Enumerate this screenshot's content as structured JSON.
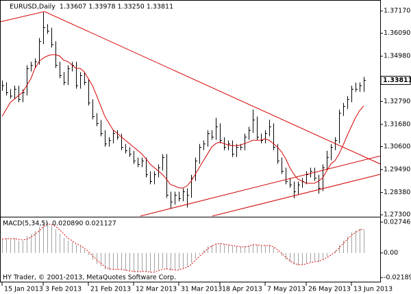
{
  "chart_data": {
    "type": "ohlc",
    "title": "EURUSD,Daily",
    "title_values": "1.33607 1.33978 1.33250 1.33811",
    "color": "#000000",
    "xlim": [
      -0.5,
      92
    ],
    "xticks": [
      {
        "value": 0,
        "label": "15 Jan 2013"
      },
      {
        "value": 10,
        "label": "3 Feb 2013"
      },
      {
        "value": 21,
        "label": "21 Feb 2013"
      },
      {
        "value": 32,
        "label": "12 Mar 2013"
      },
      {
        "value": 43,
        "label": "31 Mar 2013"
      },
      {
        "value": 53,
        "label": "18 Apr 2013"
      },
      {
        "value": 64,
        "label": "7 May 2013"
      },
      {
        "value": 74,
        "label": "26 May 2013"
      },
      {
        "value": 85,
        "label": "13 Jun 2013"
      }
    ],
    "ylim": [
      1.2724,
      1.377
    ],
    "yticks": [
      {
        "value": 1.3717,
        "label": "1.37170"
      },
      {
        "value": 1.3609,
        "label": "1.36090"
      },
      {
        "value": 1.3498,
        "label": "1.34980"
      },
      {
        "value": 1.3279,
        "label": "1.32790"
      },
      {
        "value": 1.3168,
        "label": "1.31680"
      },
      {
        "value": 1.306,
        "label": "1.30600"
      },
      {
        "value": 1.2949,
        "label": "1.29490"
      },
      {
        "value": 1.2838,
        "label": "1.28380"
      },
      {
        "value": 1.273,
        "label": "1.27300"
      }
    ],
    "last_price": 1.33811,
    "high": [
      1.338,
      1.3371,
      1.3338,
      1.3355,
      1.3355,
      1.3338,
      1.3454,
      1.3471,
      1.3487,
      1.3586,
      1.371,
      1.3653,
      1.3636,
      1.357,
      1.3471,
      1.3421,
      1.3454,
      1.3471,
      1.3471,
      1.3421,
      1.3421,
      1.3388,
      1.3289,
      1.3222,
      1.3189,
      1.314,
      1.3106,
      1.314,
      1.314,
      1.3123,
      1.3073,
      1.3057,
      1.304,
      1.3007,
      1.3007,
      1.3007,
      1.2941,
      1.2941,
      1.2974,
      1.3024,
      1.3024,
      1.2842,
      1.2842,
      1.2842,
      1.2858,
      1.2858,
      1.2924,
      1.3007,
      1.3073,
      1.309,
      1.314,
      1.314,
      1.32,
      1.3173,
      1.3106,
      1.309,
      1.309,
      1.3073,
      1.3073,
      1.3123,
      1.3156,
      1.324,
      1.3206,
      1.3123,
      1.314,
      1.319,
      1.3173,
      1.3073,
      1.3007,
      1.2958,
      1.2908,
      1.2891,
      1.2891,
      1.2908,
      1.2941,
      1.2958,
      1.2958,
      1.2924,
      1.2974,
      1.304,
      1.3073,
      1.3106,
      1.3239,
      1.3272,
      1.3305,
      1.3355,
      1.337,
      1.3371,
      1.33978
    ],
    "low": [
      1.333,
      1.3308,
      1.3292,
      1.3292,
      1.3275,
      1.3275,
      1.3308,
      1.3424,
      1.3441,
      1.3457,
      1.3556,
      1.3606,
      1.354,
      1.3441,
      1.3391,
      1.3358,
      1.3358,
      1.3424,
      1.3341,
      1.3341,
      1.3358,
      1.3259,
      1.3192,
      1.3159,
      1.311,
      1.306,
      1.306,
      1.3076,
      1.3093,
      1.3043,
      1.3027,
      1.301,
      1.2977,
      1.2961,
      1.2961,
      1.2911,
      1.2878,
      1.2878,
      1.2911,
      1.2944,
      1.2812,
      1.2762,
      1.2779,
      1.2795,
      1.2795,
      1.2765,
      1.2812,
      1.2894,
      1.2977,
      1.3043,
      1.306,
      1.3093,
      1.3093,
      1.3076,
      1.3043,
      1.3043,
      1.301,
      1.301,
      1.3043,
      1.3043,
      1.3093,
      1.3126,
      1.3093,
      1.3076,
      1.3076,
      1.311,
      1.3043,
      1.2977,
      1.2928,
      1.2878,
      1.2861,
      1.281,
      1.2828,
      1.2861,
      1.2878,
      1.2911,
      1.2894,
      1.2832,
      1.2845,
      1.2944,
      1.2994,
      1.3043,
      1.3076,
      1.3209,
      1.3242,
      1.3275,
      1.3325,
      1.3325,
      1.3325
    ],
    "close": [
      1.3356,
      1.3323,
      1.3307,
      1.334,
      1.329,
      1.3323,
      1.3439,
      1.3456,
      1.3472,
      1.3571,
      1.3638,
      1.3621,
      1.3555,
      1.3456,
      1.3406,
      1.3373,
      1.3439,
      1.3456,
      1.3356,
      1.3406,
      1.3373,
      1.3274,
      1.3207,
      1.3174,
      1.3125,
      1.3075,
      1.3091,
      1.3125,
      1.3108,
      1.3058,
      1.3042,
      1.3025,
      1.2992,
      1.2976,
      1.2992,
      1.2926,
      1.2893,
      1.2926,
      1.2959,
      1.3009,
      1.2827,
      1.2794,
      1.2827,
      1.281,
      1.2843,
      1.2827,
      1.2909,
      1.2992,
      1.3058,
      1.3075,
      1.3125,
      1.3108,
      1.3158,
      1.3091,
      1.3058,
      1.3075,
      1.3025,
      1.3058,
      1.3058,
      1.3108,
      1.3141,
      1.3191,
      1.3108,
      1.3091,
      1.3125,
      1.3158,
      1.3058,
      1.2992,
      1.2943,
      1.2893,
      1.2876,
      1.2843,
      1.2876,
      1.2893,
      1.2926,
      1.2943,
      1.2909,
      1.286,
      1.2959,
      1.3009,
      1.3058,
      1.3091,
      1.3224,
      1.3257,
      1.329,
      1.334,
      1.334,
      1.3356,
      1.33811
    ],
    "ma": {
      "color": "#d40000",
      "values": [
        1.3207,
        1.324,
        1.3274,
        1.329,
        1.3307,
        1.3323,
        1.3356,
        1.3389,
        1.3439,
        1.3472,
        1.3489,
        1.3499,
        1.3505,
        1.3505,
        1.3499,
        1.3479,
        1.3472,
        1.3456,
        1.3439,
        1.3439,
        1.3422,
        1.3389,
        1.3356,
        1.3307,
        1.3257,
        1.3207,
        1.3174,
        1.3141,
        1.3125,
        1.3108,
        1.3091,
        1.3075,
        1.3058,
        1.3042,
        1.3025,
        1.3002,
        1.2976,
        1.2959,
        1.2943,
        1.2926,
        1.2903,
        1.2876,
        1.287,
        1.286,
        1.286,
        1.287,
        1.2893,
        1.2926,
        1.2959,
        1.2992,
        1.3025,
        1.3058,
        1.3075,
        1.3082,
        1.3075,
        1.3068,
        1.3065,
        1.3065,
        1.3068,
        1.3075,
        1.3082,
        1.3091,
        1.3091,
        1.3091,
        1.3098,
        1.3091,
        1.3075,
        1.3058,
        1.3035,
        1.3002,
        1.2959,
        1.2926,
        1.2903,
        1.2893,
        1.2883,
        1.2883,
        1.2883,
        1.2893,
        1.2909,
        1.2943,
        1.2976,
        1.2992,
        1.3025,
        1.3068,
        1.3115,
        1.3158,
        1.3201,
        1.3234,
        1.3257
      ]
    },
    "trendlines": [
      {
        "color": "#d40000",
        "points": [
          [
            -0.5,
            1.3664
          ],
          [
            10.33,
            1.3714
          ],
          [
            92,
            1.2976
          ]
        ]
      },
      {
        "color": "#d40000",
        "points": [
          [
            33.67,
            1.2724
          ],
          [
            92,
            1.3015
          ]
        ]
      },
      {
        "color": "#d40000",
        "points": [
          [
            51.17,
            1.2724
          ],
          [
            92,
            1.2926
          ]
        ]
      }
    ],
    "indicator": {
      "type": "macd",
      "title": "MACD(5,34,5)",
      "title_values": "0.020890 0.021127",
      "ylim": [
        -0.0262,
        0.0317
      ],
      "yticks": [
        0.027462,
        {
          "value": 0,
          "label": "0.00"
        },
        -0.021891
      ],
      "histogram": {
        "color": "#a0a0a0",
        "values": [
          0.0122,
          0.0134,
          0.0122,
          0.0134,
          0.011,
          0.011,
          0.0152,
          0.0171,
          0.0195,
          0.0232,
          0.0268,
          0.0274,
          0.0244,
          0.0213,
          0.0171,
          0.0134,
          0.011,
          0.0098,
          0.0073,
          0.0061,
          0.003,
          -0.0018,
          -0.0061,
          -0.0098,
          -0.0122,
          -0.0146,
          -0.0152,
          -0.0146,
          -0.0146,
          -0.0152,
          -0.0159,
          -0.0165,
          -0.0171,
          -0.0171,
          -0.0165,
          -0.0171,
          -0.0171,
          -0.0165,
          -0.0152,
          -0.0134,
          -0.0146,
          -0.0159,
          -0.0152,
          -0.0146,
          -0.0134,
          -0.0122,
          -0.0091,
          -0.0049,
          -0.0012,
          0.0024,
          0.0061,
          0.0073,
          0.0085,
          0.0085,
          0.0079,
          0.0073,
          0.0061,
          0.0061,
          0.0055,
          0.0061,
          0.0067,
          0.0079,
          0.0073,
          0.0067,
          0.0067,
          0.0073,
          0.0049,
          0.0012,
          -0.0024,
          -0.0061,
          -0.0085,
          -0.0104,
          -0.011,
          -0.0104,
          -0.0091,
          -0.0079,
          -0.0073,
          -0.0079,
          -0.0055,
          -0.003,
          0,
          0.0024,
          0.0073,
          0.011,
          0.0146,
          0.0183,
          0.0201,
          0.022,
          0.02089
        ]
      },
      "signal": {
        "color": "#e00000",
        "values": [
          0.0122,
          0.0128,
          0.0128,
          0.0128,
          0.0122,
          0.0116,
          0.0122,
          0.014,
          0.0165,
          0.0195,
          0.0232,
          0.0256,
          0.0256,
          0.0238,
          0.0207,
          0.0171,
          0.0134,
          0.011,
          0.0085,
          0.0067,
          0.0043,
          0.0012,
          -0.0024,
          -0.0061,
          -0.0091,
          -0.0122,
          -0.014,
          -0.0146,
          -0.0146,
          -0.0146,
          -0.0152,
          -0.0159,
          -0.0165,
          -0.0165,
          -0.0165,
          -0.0165,
          -0.0171,
          -0.0171,
          -0.0159,
          -0.0146,
          -0.014,
          -0.0146,
          -0.0152,
          -0.0152,
          -0.014,
          -0.0128,
          -0.0104,
          -0.0067,
          -0.003,
          0,
          0.0037,
          0.0061,
          0.0079,
          0.0085,
          0.0079,
          0.0073,
          0.0067,
          0.0061,
          0.0055,
          0.0055,
          0.0061,
          0.0073,
          0.0073,
          0.0067,
          0.0067,
          0.0067,
          0.0055,
          0.003,
          0,
          -0.0037,
          -0.0067,
          -0.0091,
          -0.0104,
          -0.0104,
          -0.0098,
          -0.0085,
          -0.0079,
          -0.0073,
          -0.0061,
          -0.0043,
          -0.0018,
          0.0006,
          0.0043,
          0.0085,
          0.0122,
          0.0159,
          0.0183,
          0.0207,
          0.021127
        ]
      }
    },
    "footer": "HY Trader, © 2001-2013, MetaQuotes Software Corp."
  }
}
